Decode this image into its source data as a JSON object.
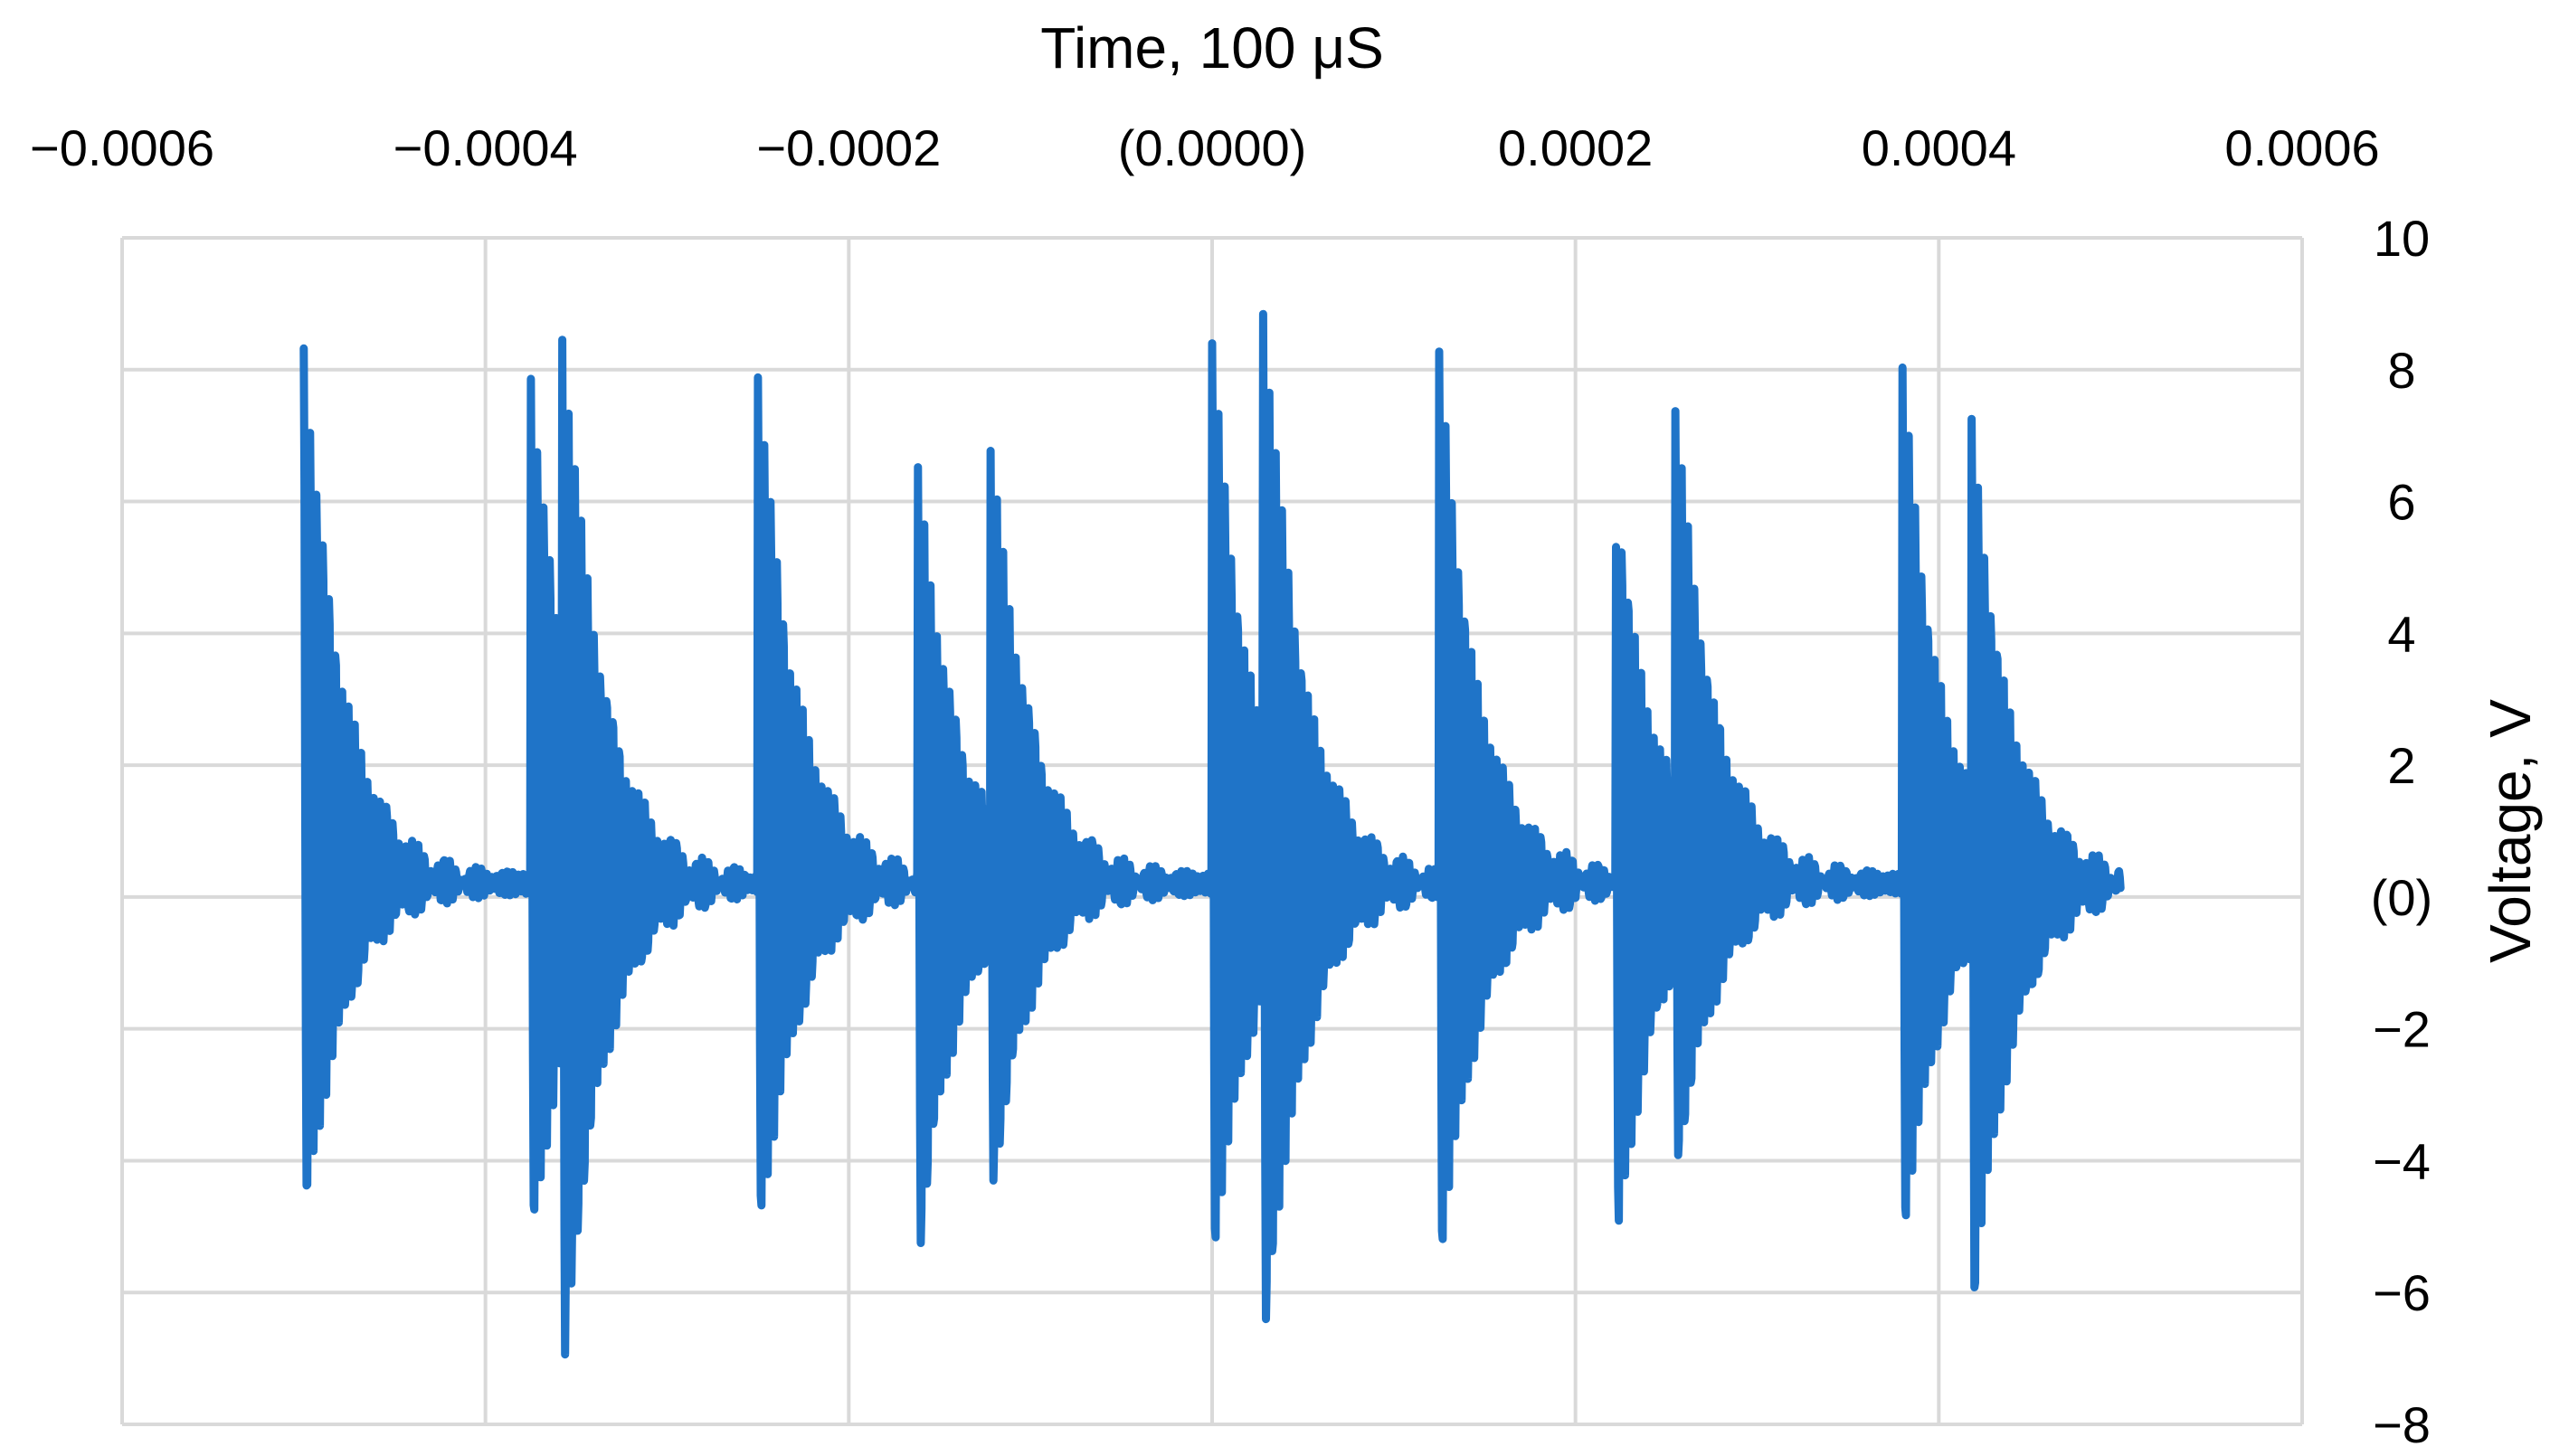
{
  "chart_data": {
    "type": "line",
    "title": "",
    "xlabel": "Time, 100 μS",
    "ylabel": "Voltage, V",
    "x_axis_position": "top",
    "y_axis_position": "right",
    "xlim": [
      -0.0006,
      0.0006
    ],
    "ylim": [
      -8,
      10
    ],
    "x_major_unit": 0.0002,
    "y_major_unit": 2,
    "x_tick_labels": [
      "−0.0006",
      "−0.0004",
      "−0.0002",
      "(0.0000)",
      "0.0002",
      "0.0004",
      "0.0006"
    ],
    "y_tick_labels": [
      "10",
      "8",
      "6",
      "4",
      "2",
      "(0)",
      "−2",
      "−4",
      "−6",
      "−8"
    ],
    "grid": true,
    "series_color": "#1f74c8",
    "grid_color": "#d9d9d9",
    "series": [
      {
        "x_start": -0.0005,
        "x_end": 0.0005,
        "baseline": 0.2,
        "bursts": [
          {
            "t": -0.0005,
            "peak": 8.4,
            "trough": -5.2
          },
          {
            "t": -0.000375,
            "peak": 8.0,
            "trough": -5.6
          },
          {
            "t": -0.000358,
            "peak": 6.2,
            "trough": -5.8
          },
          {
            "t": -0.00025,
            "peak": 8.0,
            "trough": -5.4
          },
          {
            "t": -0.000162,
            "peak": 6.4,
            "trough": -5.6
          },
          {
            "t": -0.000122,
            "peak": 7.8,
            "trough": -5.6
          },
          {
            "t": 0.0,
            "peak": 8.4,
            "trough": -5.8
          },
          {
            "t": 2.8e-05,
            "peak": 6.8,
            "trough": -5.6
          },
          {
            "t": 0.000125,
            "peak": 8.2,
            "trough": -5.8
          },
          {
            "t": 0.000222,
            "peak": 6.4,
            "trough": -5.6
          },
          {
            "t": 0.000255,
            "peak": 8.6,
            "trough": -5.6
          },
          {
            "t": 0.00038,
            "peak": 8.0,
            "trough": -5.4
          },
          {
            "t": 0.000418,
            "peak": 6.2,
            "trough": -6.0
          }
        ]
      }
    ]
  }
}
